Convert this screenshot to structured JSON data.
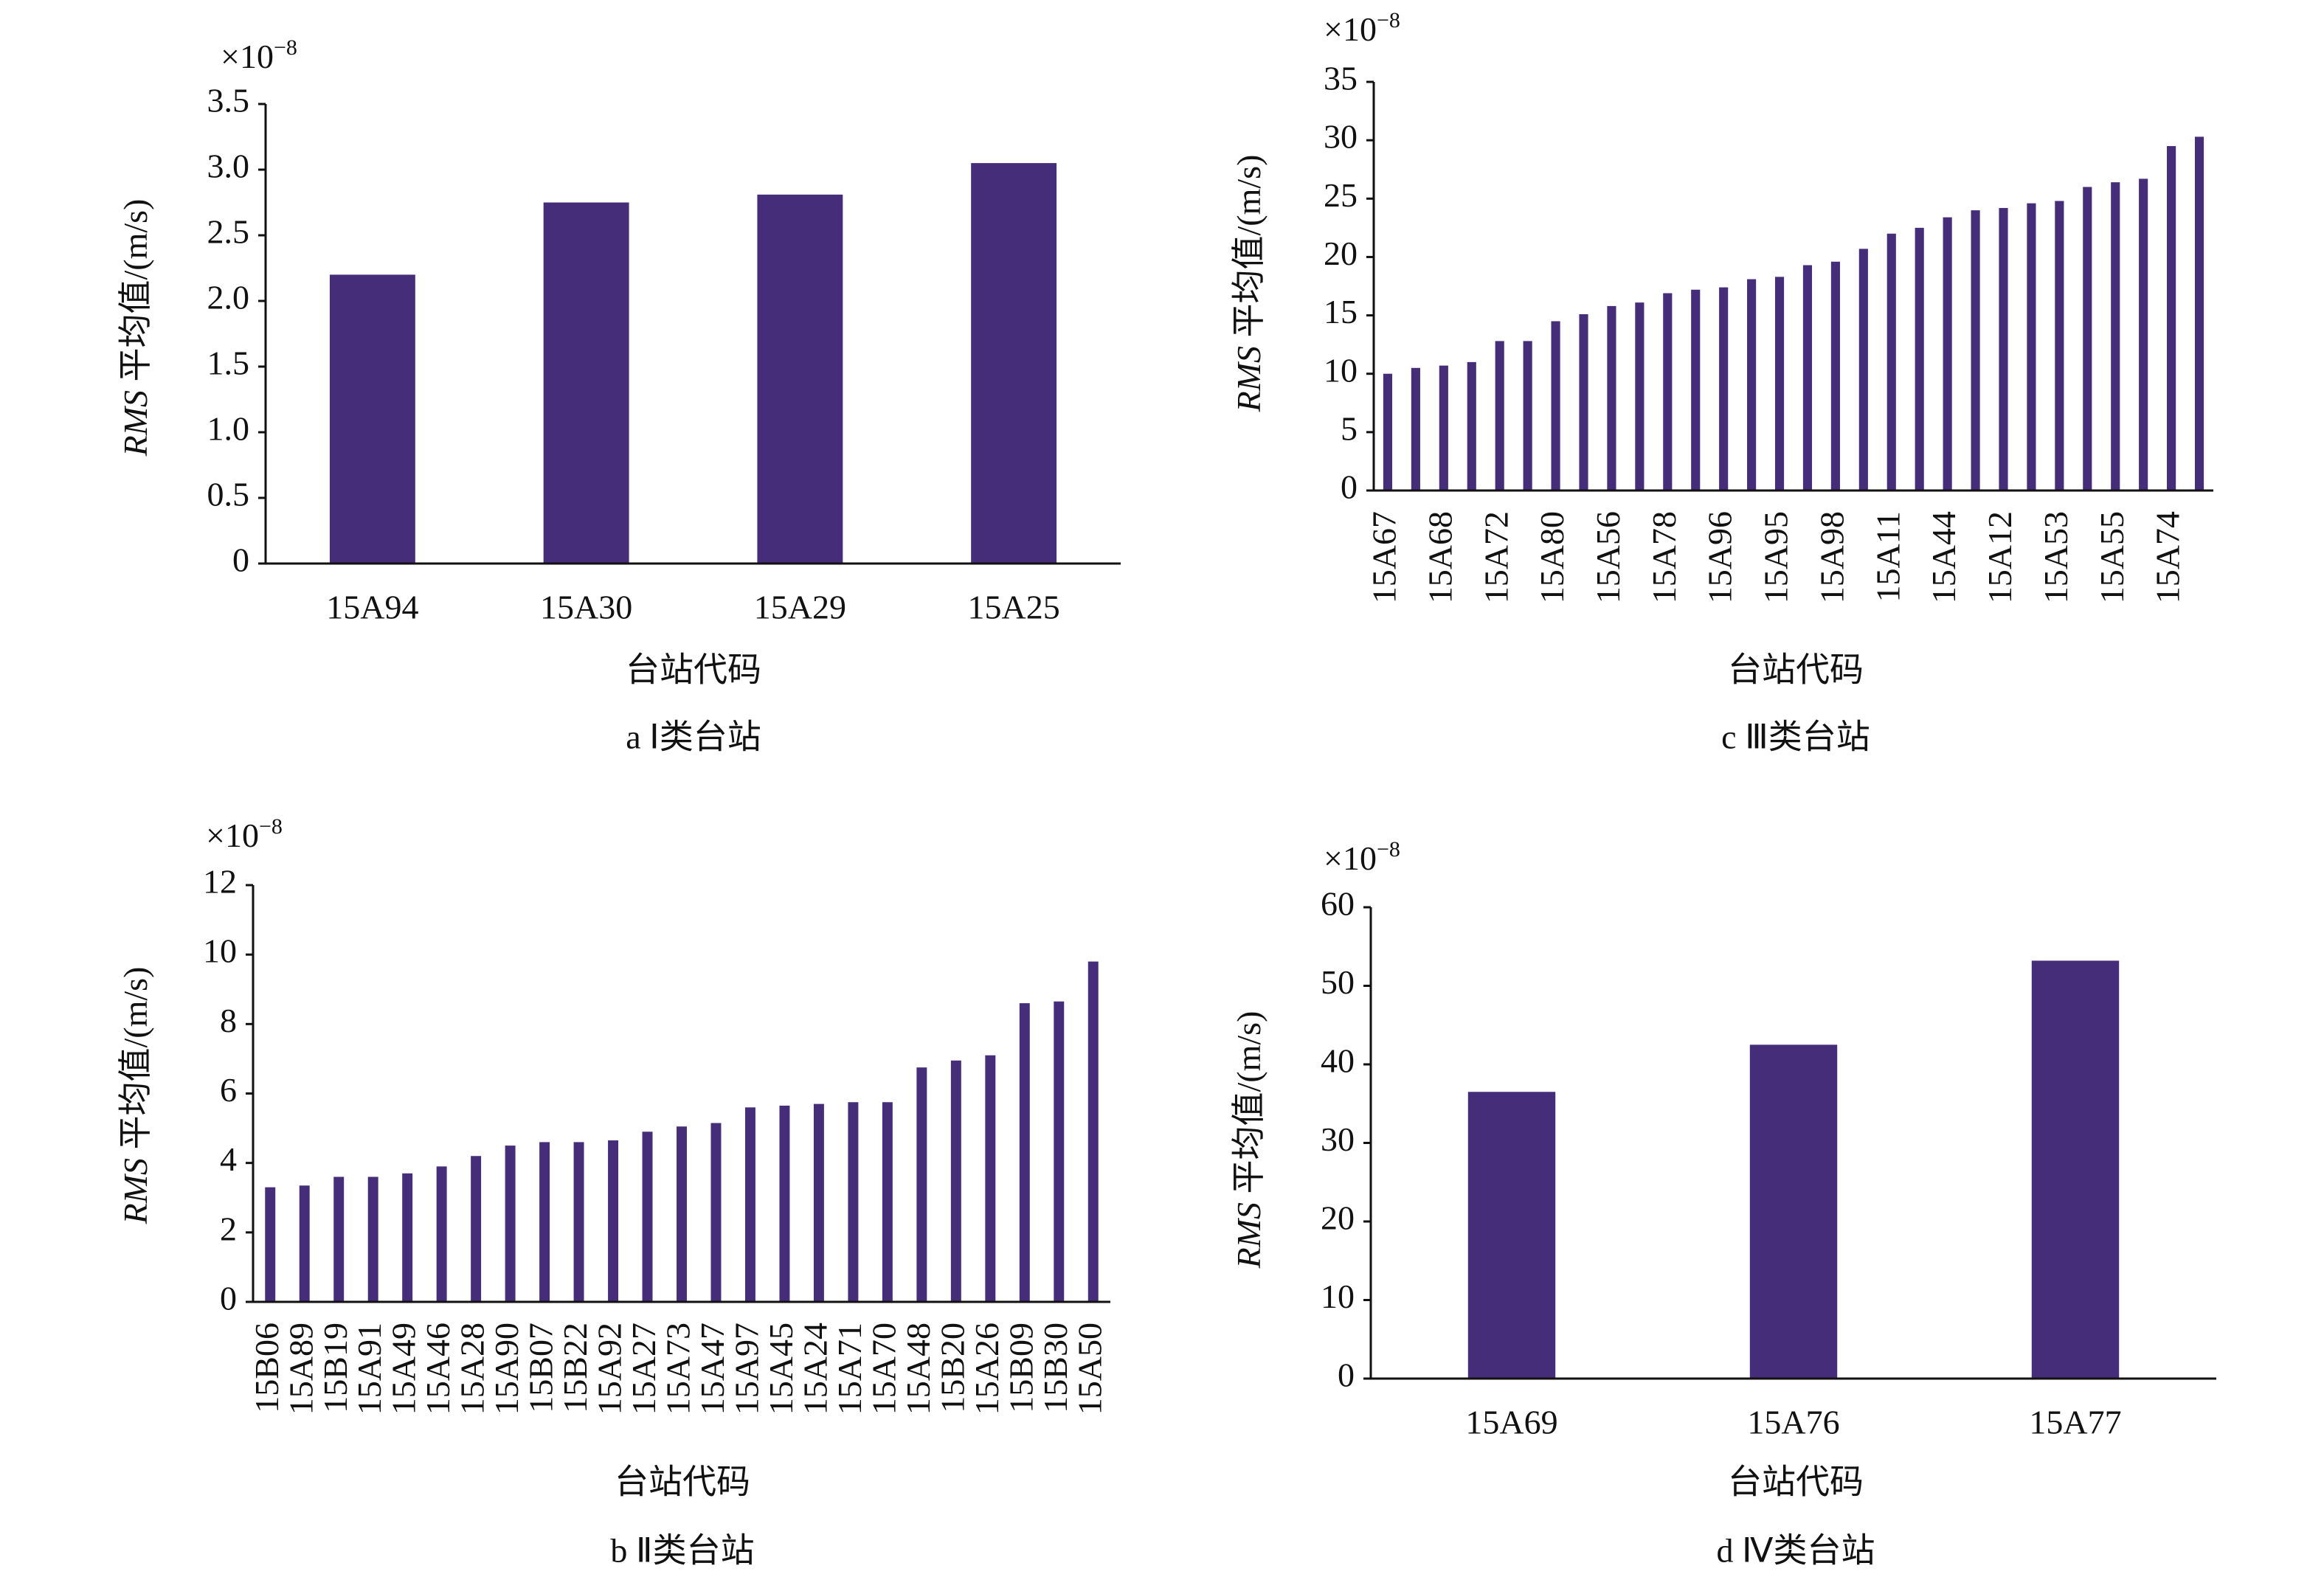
{
  "chart_data": [
    {
      "type": "bar",
      "caption": "a Ⅰ类台站",
      "scale_base": "×10",
      "scale_exponent": "−8",
      "ylabel_italic": "RMS",
      "ylabel": " 平均值/(m/s)",
      "xlabel": "台站代码",
      "categories": [
        "15A94",
        "15A30",
        "15A29",
        "15A25"
      ],
      "values": [
        2.2,
        2.75,
        2.81,
        3.05
      ],
      "color": "#452d7a",
      "ylim": [
        0,
        3.5
      ],
      "yticks": [
        0,
        0.5,
        {
          "value": 1,
          "label": "1.0"
        },
        1.5,
        {
          "value": 2,
          "label": "2.0"
        },
        2.5,
        {
          "value": 3,
          "label": "3.0"
        },
        3.5
      ]
    },
    {
      "type": "bar",
      "caption": "c Ⅲ类台站",
      "scale_base": "×10",
      "scale_exponent": "−8",
      "ylabel_italic": "RMS",
      "ylabel": " 平均值/(m/s)",
      "xlabel": "台站代码",
      "categories": [
        "15A67",
        null,
        "15A68",
        null,
        "15A72",
        null,
        "15A80",
        null,
        "15A56",
        null,
        "15A78",
        null,
        "15A96",
        null,
        "15A95",
        null,
        "15A98",
        null,
        "15A11",
        null,
        "15A44",
        null,
        "15A12",
        null,
        "15A53",
        null,
        "15A55",
        null,
        "15A74",
        null
      ],
      "values": [
        10,
        10.5,
        10.7,
        11,
        12.8,
        12.8,
        14.5,
        15.1,
        15.8,
        16.1,
        16.9,
        17.2,
        17.4,
        18.1,
        18.3,
        19.3,
        19.6,
        20.7,
        22,
        22.5,
        23.4,
        24,
        24.2,
        24.6,
        24.8,
        26,
        26.4,
        26.7,
        29.5,
        30.3
      ],
      "color": "#452d7a",
      "ylim": [
        0,
        35
      ],
      "yticks": [
        0,
        5,
        10,
        15,
        20,
        25,
        30,
        35
      ]
    },
    {
      "type": "bar",
      "caption": "b Ⅱ类台站",
      "scale_base": "×10",
      "scale_exponent": "−8",
      "ylabel_italic": "RMS",
      "ylabel": " 平均值/(m/s)",
      "xlabel": "台站代码",
      "categories": [
        "15B06",
        "15A89",
        "15B19",
        "15A91",
        "15A49",
        "15A46",
        "15A28",
        "15A90",
        "15B07",
        "15B22",
        "15A92",
        "15A27",
        "15A73",
        "15A47",
        "15A97",
        "15A45",
        "15A24",
        "15A71",
        "15A70",
        "15A48",
        "15B20",
        "15A26",
        "15B09",
        "15B30",
        "15A50"
      ],
      "values": [
        3.3,
        3.35,
        3.6,
        3.6,
        3.7,
        3.9,
        4.2,
        4.5,
        4.6,
        4.6,
        4.65,
        4.9,
        5.05,
        5.15,
        5.6,
        5.65,
        5.7,
        5.75,
        5.75,
        6.75,
        6.95,
        7.1,
        8.6,
        8.65,
        9.8
      ],
      "color": "#452d7a",
      "ylim": [
        0,
        12
      ],
      "yticks": [
        0,
        2,
        4,
        6,
        8,
        10,
        12
      ]
    },
    {
      "type": "bar",
      "caption": "d Ⅳ类台站",
      "scale_base": "×10",
      "scale_exponent": "−8",
      "ylabel_italic": "RMS",
      "ylabel": " 平均值/(m/s)",
      "xlabel": "台站代码",
      "categories": [
        "15A69",
        "15A76",
        "15A77"
      ],
      "values": [
        36.5,
        42.5,
        53.2
      ],
      "color": "#452d7a",
      "ylim": [
        0,
        60
      ],
      "yticks": [
        0,
        10,
        20,
        30,
        40,
        50,
        60
      ]
    }
  ]
}
